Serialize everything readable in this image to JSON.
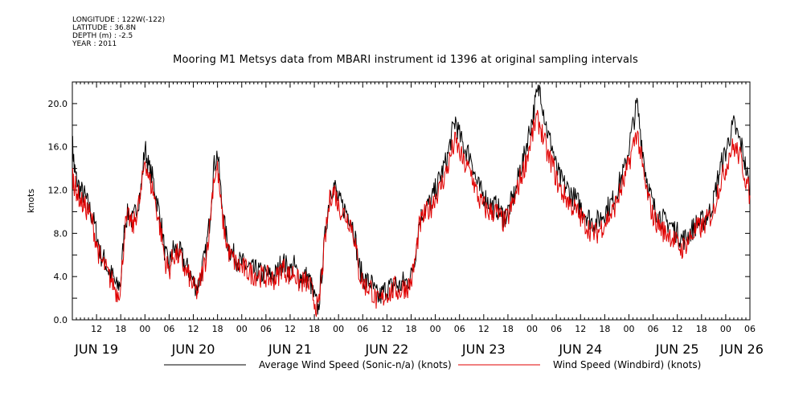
{
  "header": {
    "meta_lines": [
      "LONGITUDE : 122W(-122)",
      "LATITUDE : 36.8N",
      "DEPTH (m) : -2.5",
      "YEAR : 2011"
    ]
  },
  "chart_data": {
    "type": "line",
    "title": "Mooring M1 Metsys data from MBARI instrument id 1396 at original sampling intervals",
    "ylabel": "knots",
    "xlabel": "",
    "ylim": [
      0,
      22
    ],
    "yticks": [
      "0.0",
      "4.0",
      "8.0",
      "12.0",
      "16.0",
      "20.0"
    ],
    "ytick_values": [
      0,
      4,
      8,
      12,
      16,
      20
    ],
    "xlim_hours": [
      6,
      174
    ],
    "x_unit": "hours since JUN 19 00:00",
    "xtick_labels": [
      {
        "h": 12,
        "t": "12"
      },
      {
        "h": 18,
        "t": "18"
      },
      {
        "h": 24,
        "t": "00"
      },
      {
        "h": 30,
        "t": "06"
      },
      {
        "h": 36,
        "t": "12"
      },
      {
        "h": 42,
        "t": "18"
      },
      {
        "h": 48,
        "t": "00"
      },
      {
        "h": 54,
        "t": "06"
      },
      {
        "h": 60,
        "t": "12"
      },
      {
        "h": 66,
        "t": "18"
      },
      {
        "h": 72,
        "t": "00"
      },
      {
        "h": 78,
        "t": "06"
      },
      {
        "h": 84,
        "t": "12"
      },
      {
        "h": 90,
        "t": "18"
      },
      {
        "h": 96,
        "t": "00"
      },
      {
        "h": 102,
        "t": "06"
      },
      {
        "h": 108,
        "t": "12"
      },
      {
        "h": 114,
        "t": "18"
      },
      {
        "h": 120,
        "t": "00"
      },
      {
        "h": 126,
        "t": "06"
      },
      {
        "h": 132,
        "t": "12"
      },
      {
        "h": 138,
        "t": "18"
      },
      {
        "h": 144,
        "t": "00"
      },
      {
        "h": 150,
        "t": "06"
      },
      {
        "h": 156,
        "t": "12"
      },
      {
        "h": 162,
        "t": "18"
      },
      {
        "h": 168,
        "t": "00"
      },
      {
        "h": 174,
        "t": "06"
      }
    ],
    "day_labels": [
      {
        "h": 12,
        "t": "JUN 19"
      },
      {
        "h": 36,
        "t": "JUN 20"
      },
      {
        "h": 60,
        "t": "JUN 21"
      },
      {
        "h": 84,
        "t": "JUN 22"
      },
      {
        "h": 108,
        "t": "JUN 23"
      },
      {
        "h": 132,
        "t": "JUN 24"
      },
      {
        "h": 156,
        "t": "JUN 25"
      },
      {
        "h": 172,
        "t": "JUN 26"
      }
    ],
    "series": [
      {
        "name": "Average Wind Speed (Sonic-n/a) (knots)",
        "color": "#000000",
        "x_hours": [
          6,
          6.5,
          7,
          8,
          9,
          10,
          11,
          12,
          13,
          14,
          15,
          16,
          17,
          18,
          19,
          20,
          21,
          22,
          23,
          24,
          25,
          26,
          27,
          28,
          29,
          30,
          31,
          32,
          33,
          34,
          35,
          36,
          37,
          38,
          39,
          40,
          41,
          42,
          43,
          44,
          45,
          46,
          47,
          48,
          49,
          50,
          51,
          52,
          53,
          54,
          55,
          56,
          57,
          58,
          59,
          60,
          61,
          62,
          63,
          64,
          65,
          66,
          67,
          68,
          69,
          70,
          71,
          72,
          73,
          74,
          75,
          76,
          77,
          78,
          79,
          80,
          81,
          82,
          83,
          84,
          85,
          86,
          87,
          88,
          89,
          90,
          91,
          92,
          93,
          94,
          95,
          96,
          97,
          98,
          99,
          100,
          101,
          102,
          103,
          104,
          105,
          106,
          107,
          108,
          109,
          110,
          111,
          112,
          113,
          114,
          115,
          116,
          117,
          118,
          119,
          120,
          121,
          122,
          123,
          124,
          125,
          126,
          127,
          128,
          129,
          130,
          131,
          132,
          133,
          134,
          135,
          136,
          137,
          138,
          139,
          140,
          141,
          142,
          143,
          144,
          145,
          146,
          147,
          148,
          149,
          150,
          151,
          152,
          153,
          154,
          155,
          156,
          157,
          158,
          159,
          160,
          161,
          162,
          163,
          164,
          165,
          166,
          167,
          168,
          169,
          170,
          171,
          172,
          173,
          174
        ],
        "y_values": [
          16.5,
          14,
          13,
          12,
          11.5,
          10.5,
          9.5,
          8,
          6,
          5.5,
          4.5,
          4,
          3,
          3.5,
          9,
          10,
          9,
          10.5,
          12,
          16,
          14,
          13,
          11,
          9,
          6,
          5,
          6.5,
          6.5,
          6,
          5,
          4.5,
          3.5,
          3,
          4.5,
          6,
          9,
          14,
          15.5,
          11,
          8,
          6.5,
          6,
          5.5,
          5.2,
          5,
          4.8,
          4.5,
          4.5,
          4.2,
          4.2,
          4,
          4,
          4.5,
          5.5,
          5,
          4.5,
          5,
          4,
          4,
          4,
          3.5,
          2,
          1,
          5,
          9,
          12,
          12.5,
          11,
          10.5,
          10,
          9.5,
          8,
          5,
          4,
          3.5,
          3.5,
          2.5,
          2,
          2.5,
          3,
          3,
          3.5,
          3,
          3.5,
          3.5,
          4,
          6,
          9,
          10,
          10.5,
          11,
          12,
          13,
          14,
          15,
          17,
          18.5,
          17,
          16,
          15.5,
          15,
          13,
          12,
          11.5,
          11,
          10.5,
          10.5,
          10,
          9.5,
          10,
          11,
          12,
          14,
          15,
          17,
          18.5,
          20.5,
          21.5,
          19,
          17,
          16,
          14,
          13,
          12.5,
          12,
          11.5,
          11,
          10.5,
          10,
          9.5,
          9,
          9,
          9.5,
          10,
          10.5,
          11,
          12,
          13,
          14,
          16,
          18,
          20,
          17,
          14,
          12,
          10.5,
          10,
          9.5,
          9,
          9,
          8.5,
          8,
          7.5,
          7.5,
          8,
          8.5,
          9,
          9,
          9.5,
          10,
          11,
          13,
          14.5,
          15.5,
          17,
          18,
          17,
          16,
          14,
          12
        ]
      },
      {
        "name": "Wind Speed (Windbird) (knots)",
        "color": "#e00000",
        "x_hours": [
          6,
          6.5,
          7,
          8,
          9,
          10,
          11,
          12,
          13,
          14,
          15,
          16,
          17,
          18,
          19,
          20,
          21,
          22,
          23,
          24,
          25,
          26,
          27,
          28,
          29,
          30,
          31,
          32,
          33,
          34,
          35,
          36,
          37,
          38,
          39,
          40,
          41,
          42,
          43,
          44,
          45,
          46,
          47,
          48,
          49,
          50,
          51,
          52,
          53,
          54,
          55,
          56,
          57,
          58,
          59,
          60,
          61,
          62,
          63,
          64,
          65,
          66,
          67,
          68,
          69,
          70,
          71,
          72,
          73,
          74,
          75,
          76,
          77,
          78,
          79,
          80,
          81,
          82,
          83,
          84,
          85,
          86,
          87,
          88,
          89,
          90,
          91,
          92,
          93,
          94,
          95,
          96,
          97,
          98,
          99,
          100,
          101,
          102,
          103,
          104,
          105,
          106,
          107,
          108,
          109,
          110,
          111,
          112,
          113,
          114,
          115,
          116,
          117,
          118,
          119,
          120,
          121,
          122,
          123,
          124,
          125,
          126,
          127,
          128,
          129,
          130,
          131,
          132,
          133,
          134,
          135,
          136,
          137,
          138,
          139,
          140,
          141,
          142,
          143,
          144,
          145,
          146,
          147,
          148,
          149,
          150,
          151,
          152,
          153,
          154,
          155,
          156,
          157,
          158,
          159,
          160,
          161,
          162,
          163,
          164,
          165,
          166,
          167,
          168,
          169,
          170,
          171,
          172,
          173,
          174
        ],
        "y_values": [
          13.5,
          12.5,
          12,
          11,
          10.5,
          10,
          9,
          7,
          5.5,
          5,
          4,
          3.5,
          2.5,
          3,
          8.5,
          9.5,
          8.5,
          10,
          11.5,
          15,
          13,
          12,
          10,
          8,
          5.5,
          4.5,
          6,
          6,
          5.5,
          4.5,
          4,
          3,
          2.5,
          4,
          5.5,
          8.5,
          13,
          14,
          10,
          7.5,
          6,
          5.5,
          5,
          4.8,
          4.6,
          4.4,
          4.2,
          4.2,
          4,
          4,
          3.8,
          3.8,
          4,
          5,
          4.5,
          4,
          4.5,
          3.5,
          3.5,
          3.5,
          3,
          1.8,
          0.8,
          4.8,
          8.5,
          11.5,
          12,
          10.5,
          10,
          9.5,
          9,
          7.5,
          4.5,
          3.5,
          3,
          3,
          2,
          1.5,
          2,
          2.5,
          2.5,
          3,
          2.5,
          3,
          3,
          3.5,
          5.5,
          8.5,
          9.5,
          10,
          10.5,
          11.5,
          12,
          13,
          14,
          15.5,
          16.5,
          15.5,
          14.5,
          14,
          13.5,
          12,
          11,
          10.5,
          10,
          10,
          10,
          9.5,
          9,
          9.5,
          10.5,
          11.5,
          13,
          14,
          15.5,
          17,
          18.5,
          18,
          16.5,
          15,
          14.5,
          13,
          12,
          11.5,
          11,
          10.5,
          10,
          9.5,
          9,
          8.5,
          8,
          8,
          8.5,
          9,
          9.5,
          10,
          11,
          12,
          13,
          14.5,
          16,
          17.5,
          15,
          12.5,
          11,
          9.5,
          9,
          8.5,
          8,
          8,
          7.5,
          7,
          6.5,
          7,
          7.5,
          8,
          8.5,
          8.5,
          9,
          9.5,
          10,
          12,
          13,
          14,
          15.5,
          16,
          15.5,
          14.5,
          13,
          11.5
        ]
      }
    ],
    "legend": {
      "placement": "bottom",
      "entries": [
        {
          "label": "Average Wind Speed (Sonic-n/a) (knots)",
          "color": "#000000"
        },
        {
          "label": "Wind Speed (Windbird) (knots)",
          "color": "#e00000"
        }
      ]
    },
    "grid": false
  }
}
